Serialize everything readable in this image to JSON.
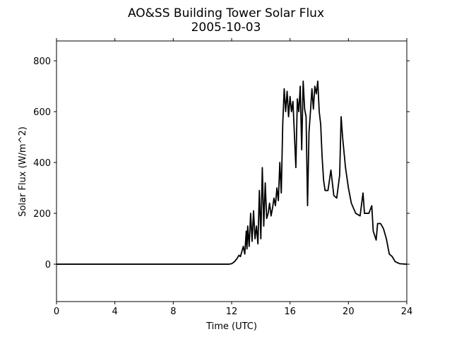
{
  "chart_data": {
    "type": "line",
    "title": "AO&SS Building Tower Solar Flux",
    "subtitle": "2005-10-03",
    "x_label": "Time (UTC)",
    "y_label": "Solar Flux (W/m^2)",
    "xlim": [
      0,
      24
    ],
    "xticks": [
      0,
      4,
      8,
      12,
      16,
      20,
      24
    ],
    "ylim": [
      -147,
      878
    ],
    "yticks": [
      0,
      200,
      400,
      600,
      800
    ],
    "series": [
      {
        "color": "#000000",
        "x": [
          0,
          11.8,
          12.0,
          12.2,
          12.4,
          12.5,
          12.6,
          12.7,
          12.8,
          12.9,
          13.0,
          13.05,
          13.1,
          13.2,
          13.3,
          13.4,
          13.5,
          13.6,
          13.7,
          13.8,
          13.9,
          14.0,
          14.1,
          14.2,
          14.3,
          14.4,
          14.5,
          14.6,
          14.7,
          14.8,
          14.9,
          15.0,
          15.1,
          15.2,
          15.3,
          15.4,
          15.5,
          15.6,
          15.7,
          15.8,
          15.9,
          16.0,
          16.1,
          16.2,
          16.4,
          16.5,
          16.6,
          16.7,
          16.8,
          16.9,
          17.0,
          17.1,
          17.2,
          17.3,
          17.4,
          17.5,
          17.6,
          17.7,
          17.8,
          17.9,
          18.0,
          18.1,
          18.2,
          18.3,
          18.4,
          18.6,
          18.8,
          19.0,
          19.2,
          19.4,
          19.5,
          19.6,
          19.8,
          20.0,
          20.2,
          20.5,
          20.8,
          21.0,
          21.1,
          21.4,
          21.6,
          21.7,
          21.9,
          22.0,
          22.2,
          22.4,
          22.6,
          22.8,
          23.0,
          23.2,
          23.5,
          24.0
        ],
        "values": [
          0,
          0,
          2,
          10,
          25,
          35,
          30,
          50,
          70,
          40,
          130,
          60,
          150,
          70,
          200,
          90,
          210,
          100,
          150,
          80,
          290,
          100,
          380,
          150,
          320,
          180,
          200,
          240,
          190,
          220,
          260,
          230,
          300,
          250,
          400,
          280,
          550,
          690,
          600,
          680,
          580,
          660,
          600,
          640,
          380,
          650,
          600,
          700,
          450,
          720,
          610,
          580,
          230,
          520,
          600,
          690,
          610,
          700,
          670,
          720,
          600,
          550,
          420,
          330,
          290,
          290,
          370,
          270,
          260,
          350,
          580,
          500,
          380,
          300,
          240,
          200,
          190,
          280,
          200,
          200,
          230,
          130,
          95,
          160,
          160,
          140,
          100,
          40,
          30,
          10,
          2,
          0
        ]
      }
    ]
  }
}
